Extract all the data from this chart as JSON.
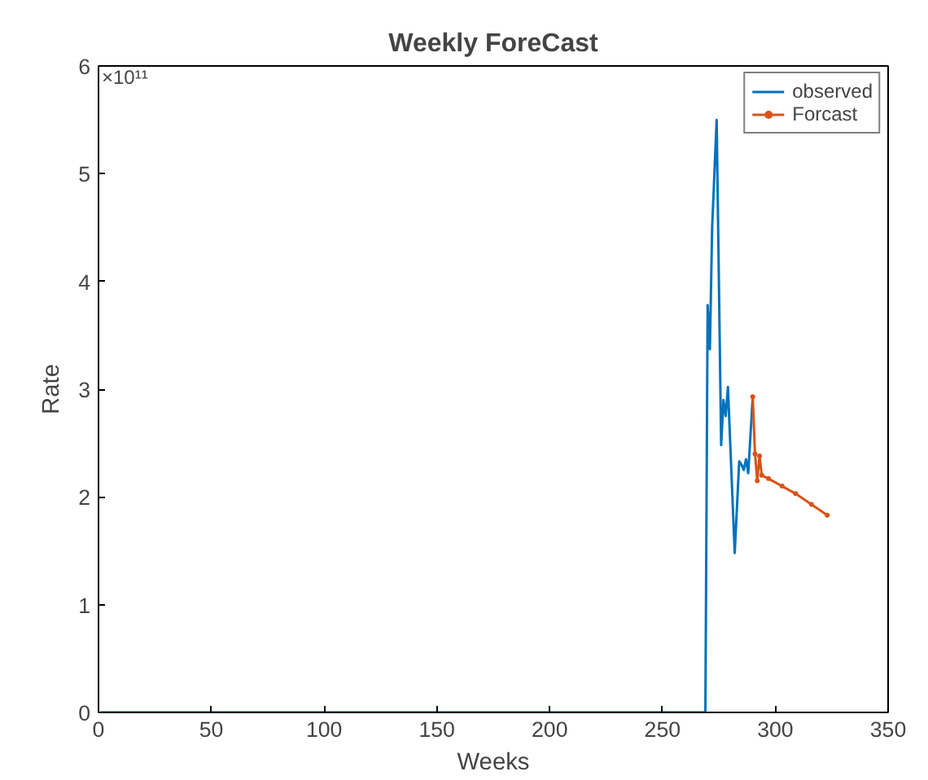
{
  "chart_data": {
    "type": "line",
    "title": "Weekly ForeCast",
    "xlabel": "Weeks",
    "ylabel": "Rate",
    "annotations": [
      "×10¹¹"
    ],
    "xlim": [
      0,
      350
    ],
    "xticks": [
      0,
      50,
      100,
      150,
      200,
      250,
      300,
      350
    ],
    "ylim": [
      0,
      6
    ],
    "yticks": [
      0,
      1,
      2,
      3,
      4,
      5,
      6
    ],
    "grid": false,
    "legend": "top right",
    "series": [
      {
        "name": "observed",
        "color": "#0072bd",
        "marker": "none",
        "x": [
          1,
          269,
          270,
          271,
          272,
          274,
          276,
          277,
          278,
          279,
          282,
          284,
          285,
          286,
          287,
          288,
          290
        ],
        "values": [
          0,
          0,
          3.78,
          3.37,
          4.5,
          5.5,
          2.48,
          2.9,
          2.75,
          3.02,
          1.48,
          2.33,
          2.3,
          2.25,
          2.35,
          2.22,
          2.93
        ]
      },
      {
        "name": "Forcast",
        "color": "#d95319",
        "marker": "circle",
        "x": [
          290,
          291,
          292,
          293,
          294,
          297,
          303,
          309,
          316,
          323
        ],
        "values": [
          2.93,
          2.4,
          2.15,
          2.38,
          2.2,
          2.17,
          2.1,
          2.03,
          1.93,
          1.83
        ]
      }
    ]
  }
}
